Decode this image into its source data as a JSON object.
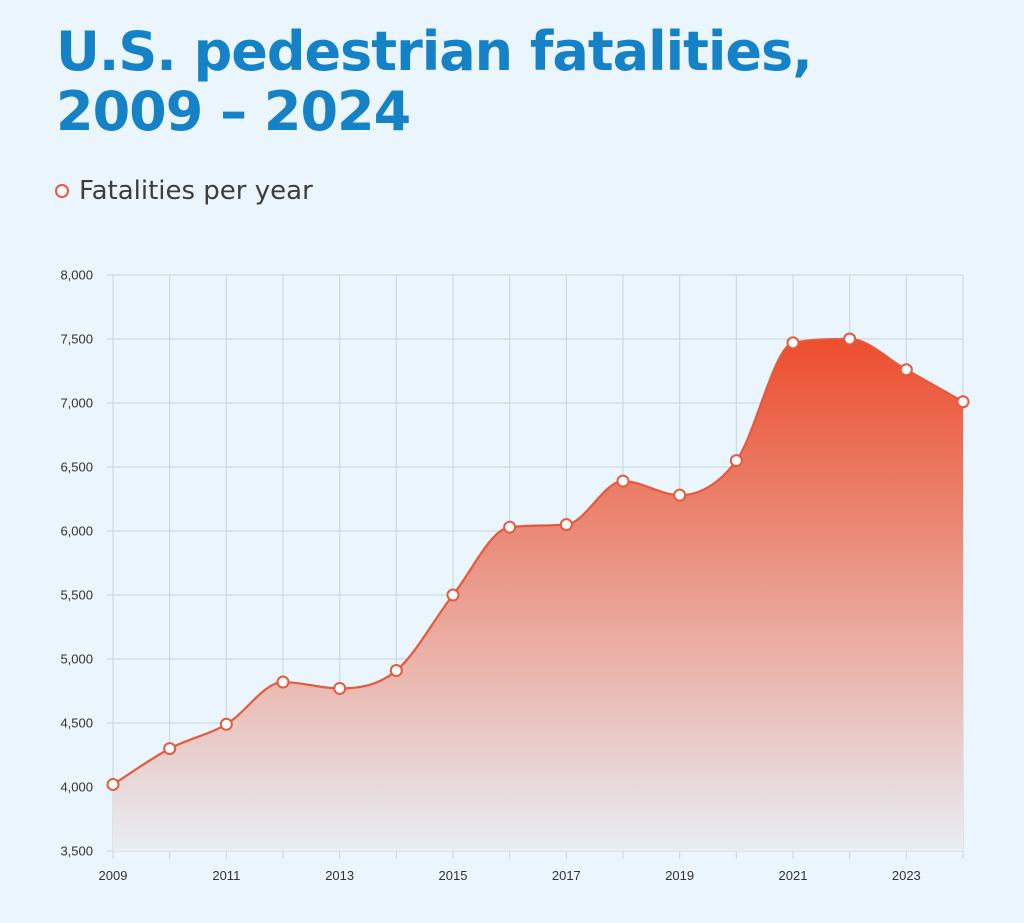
{
  "title": "U.S. pedestrian fatalities, 2009 – 2024",
  "legend": {
    "label": "Fatalities per year"
  },
  "colors": {
    "title": "#1582c7",
    "line": "#e55a3c",
    "area_top": "#ec4e2d",
    "area_bottom": "#e8eef3",
    "grid": "#c9d4dc",
    "background": "#eaf5fd"
  },
  "chart_data": {
    "type": "area",
    "title": "U.S. pedestrian fatalities, 2009 – 2024",
    "xlabel": "",
    "ylabel": "",
    "x": [
      2009,
      2010,
      2011,
      2012,
      2013,
      2014,
      2015,
      2016,
      2017,
      2018,
      2019,
      2020,
      2021,
      2022,
      2023,
      2024
    ],
    "x_tick_labels": [
      "2009",
      "2011",
      "2013",
      "2015",
      "2017",
      "2019",
      "2021",
      "2023"
    ],
    "y_tick_labels": [
      "3,500",
      "4,000",
      "4,500",
      "5,000",
      "5,500",
      "6,000",
      "6,500",
      "7,000",
      "7,500",
      "8,000"
    ],
    "ylim": [
      3500,
      8000
    ],
    "xlim": [
      2009,
      2024
    ],
    "grid": true,
    "legend_position": "top-left",
    "series": [
      {
        "name": "Fatalities per year",
        "values": [
          4020,
          4300,
          4490,
          4820,
          4770,
          4910,
          5500,
          6030,
          6050,
          6390,
          6280,
          6550,
          7470,
          7500,
          7260,
          7010
        ]
      }
    ]
  }
}
